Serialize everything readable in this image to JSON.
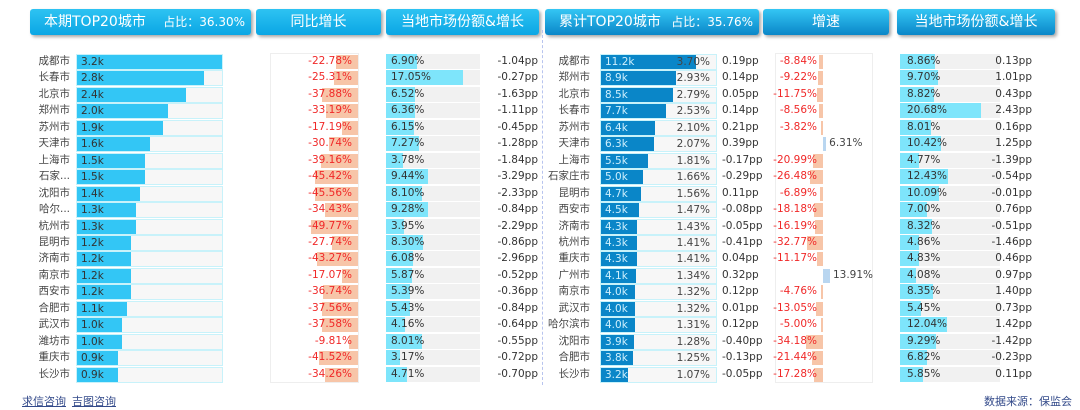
{
  "left": {
    "header_title": "本期TOP20城市",
    "header_share": "占比：36.30%",
    "col_yoy": "同比增长",
    "col_share": "当地市场份额&增长",
    "rows": [
      {
        "city": "成都市",
        "value": 3.2,
        "label": "3.2k",
        "yoy": "-22.78%",
        "yoy_num": -22.78,
        "share": "6.90%",
        "share_num": 6.9,
        "pp": "-1.04pp"
      },
      {
        "city": "长春市",
        "value": 2.8,
        "label": "2.8k",
        "yoy": "-25.31%",
        "yoy_num": -25.31,
        "share": "17.05%",
        "share_num": 17.05,
        "pp": "-0.27pp"
      },
      {
        "city": "北京市",
        "value": 2.4,
        "label": "2.4k",
        "yoy": "-37.88%",
        "yoy_num": -37.88,
        "share": "6.52%",
        "share_num": 6.52,
        "pp": "-1.63pp"
      },
      {
        "city": "郑州市",
        "value": 2.0,
        "label": "2.0k",
        "yoy": "-33.19%",
        "yoy_num": -33.19,
        "share": "6.36%",
        "share_num": 6.36,
        "pp": "-1.11pp"
      },
      {
        "city": "苏州市",
        "value": 1.9,
        "label": "1.9k",
        "yoy": "-17.19%",
        "yoy_num": -17.19,
        "share": "6.15%",
        "share_num": 6.15,
        "pp": "-0.45pp"
      },
      {
        "city": "天津市",
        "value": 1.6,
        "label": "1.6k",
        "yoy": "-30.74%",
        "yoy_num": -30.74,
        "share": "7.27%",
        "share_num": 7.27,
        "pp": "-1.28pp"
      },
      {
        "city": "上海市",
        "value": 1.5,
        "label": "1.5k",
        "yoy": "-39.16%",
        "yoy_num": -39.16,
        "share": "3.78%",
        "share_num": 3.78,
        "pp": "-1.84pp"
      },
      {
        "city": "石家...",
        "value": 1.5,
        "label": "1.5k",
        "yoy": "-45.42%",
        "yoy_num": -45.42,
        "share": "9.44%",
        "share_num": 9.44,
        "pp": "-3.29pp"
      },
      {
        "city": "沈阳市",
        "value": 1.4,
        "label": "1.4k",
        "yoy": "-45.56%",
        "yoy_num": -45.56,
        "share": "8.10%",
        "share_num": 8.1,
        "pp": "-2.33pp"
      },
      {
        "city": "哈尔...",
        "value": 1.3,
        "label": "1.3k",
        "yoy": "-34.43%",
        "yoy_num": -34.43,
        "share": "9.28%",
        "share_num": 9.28,
        "pp": "-0.84pp"
      },
      {
        "city": "杭州市",
        "value": 1.3,
        "label": "1.3k",
        "yoy": "-49.77%",
        "yoy_num": -49.77,
        "share": "3.95%",
        "share_num": 3.95,
        "pp": "-2.29pp"
      },
      {
        "city": "昆明市",
        "value": 1.2,
        "label": "1.2k",
        "yoy": "-27.74%",
        "yoy_num": -27.74,
        "share": "8.30%",
        "share_num": 8.3,
        "pp": "-0.86pp"
      },
      {
        "city": "济南市",
        "value": 1.2,
        "label": "1.2k",
        "yoy": "-43.27%",
        "yoy_num": -43.27,
        "share": "6.08%",
        "share_num": 6.08,
        "pp": "-2.96pp"
      },
      {
        "city": "南京市",
        "value": 1.2,
        "label": "1.2k",
        "yoy": "-17.07%",
        "yoy_num": -17.07,
        "share": "5.87%",
        "share_num": 5.87,
        "pp": "-0.52pp"
      },
      {
        "city": "西安市",
        "value": 1.2,
        "label": "1.2k",
        "yoy": "-36.74%",
        "yoy_num": -36.74,
        "share": "5.39%",
        "share_num": 5.39,
        "pp": "-0.36pp"
      },
      {
        "city": "合肥市",
        "value": 1.1,
        "label": "1.1k",
        "yoy": "-37.56%",
        "yoy_num": -37.56,
        "share": "5.43%",
        "share_num": 5.43,
        "pp": "-0.84pp"
      },
      {
        "city": "武汉市",
        "value": 1.0,
        "label": "1.0k",
        "yoy": "-37.58%",
        "yoy_num": -37.58,
        "share": "4.16%",
        "share_num": 4.16,
        "pp": "-0.64pp"
      },
      {
        "city": "潍坊市",
        "value": 1.0,
        "label": "1.0k",
        "yoy": "-9.81%",
        "yoy_num": -9.81,
        "share": "8.01%",
        "share_num": 8.01,
        "pp": "-0.55pp"
      },
      {
        "city": "重庆市",
        "value": 0.9,
        "label": "0.9k",
        "yoy": "-41.52%",
        "yoy_num": -41.52,
        "share": "3.17%",
        "share_num": 3.17,
        "pp": "-0.72pp"
      },
      {
        "city": "长沙市",
        "value": 0.9,
        "label": "0.9k",
        "yoy": "-34.26%",
        "yoy_num": -34.26,
        "share": "4.71%",
        "share_num": 4.71,
        "pp": "-0.70pp"
      }
    ]
  },
  "right": {
    "header_title": "累计TOP20城市",
    "header_share": "占比：35.76%",
    "col_growth": "增速",
    "col_share": "当地市场份额&增长",
    "rows": [
      {
        "city": "成都市",
        "value": 11.2,
        "label": "11.2k",
        "pct": "3.70%",
        "pct_pp": "0.19pp",
        "growth": "-8.84%",
        "growth_num": -8.84,
        "share": "8.86%",
        "share_num": 8.86,
        "pp": "0.13pp"
      },
      {
        "city": "郑州市",
        "value": 8.9,
        "label": "8.9k",
        "pct": "2.93%",
        "pct_pp": "0.14pp",
        "growth": "-9.22%",
        "growth_num": -9.22,
        "share": "9.70%",
        "share_num": 9.7,
        "pp": "1.01pp"
      },
      {
        "city": "北京市",
        "value": 8.5,
        "label": "8.5k",
        "pct": "2.79%",
        "pct_pp": "0.05pp",
        "growth": "-11.75%",
        "growth_num": -11.75,
        "share": "8.82%",
        "share_num": 8.82,
        "pp": "0.43pp"
      },
      {
        "city": "长春市",
        "value": 7.7,
        "label": "7.7k",
        "pct": "2.53%",
        "pct_pp": "0.14pp",
        "growth": "-8.56%",
        "growth_num": -8.56,
        "share": "20.68%",
        "share_num": 20.68,
        "pp": "2.43pp"
      },
      {
        "city": "苏州市",
        "value": 6.4,
        "label": "6.4k",
        "pct": "2.10%",
        "pct_pp": "0.21pp",
        "growth": "-3.82%",
        "growth_num": -3.82,
        "share": "8.01%",
        "share_num": 8.01,
        "pp": "0.16pp"
      },
      {
        "city": "天津市",
        "value": 6.3,
        "label": "6.3k",
        "pct": "2.07%",
        "pct_pp": "0.39pp",
        "growth": "6.31%",
        "growth_num": 6.31,
        "share": "10.42%",
        "share_num": 10.42,
        "pp": "1.25pp"
      },
      {
        "city": "上海市",
        "value": 5.5,
        "label": "5.5k",
        "pct": "1.81%",
        "pct_pp": "-0.17pp",
        "growth": "-20.99%",
        "growth_num": -20.99,
        "share": "4.77%",
        "share_num": 4.77,
        "pp": "-1.39pp"
      },
      {
        "city": "石家庄市",
        "value": 5.0,
        "label": "5.0k",
        "pct": "1.66%",
        "pct_pp": "-0.29pp",
        "growth": "-26.48%",
        "growth_num": -26.48,
        "share": "12.43%",
        "share_num": 12.43,
        "pp": "-0.54pp"
      },
      {
        "city": "昆明市",
        "value": 4.7,
        "label": "4.7k",
        "pct": "1.56%",
        "pct_pp": "0.11pp",
        "growth": "-6.89%",
        "growth_num": -6.89,
        "share": "10.09%",
        "share_num": 10.09,
        "pp": "-0.01pp"
      },
      {
        "city": "西安市",
        "value": 4.5,
        "label": "4.5k",
        "pct": "1.47%",
        "pct_pp": "-0.08pp",
        "growth": "-18.18%",
        "growth_num": -18.18,
        "share": "7.00%",
        "share_num": 7.0,
        "pp": "0.76pp"
      },
      {
        "city": "济南市",
        "value": 4.3,
        "label": "4.3k",
        "pct": "1.43%",
        "pct_pp": "-0.05pp",
        "growth": "-16.19%",
        "growth_num": -16.19,
        "share": "8.32%",
        "share_num": 8.32,
        "pp": "-0.51pp"
      },
      {
        "city": "杭州市",
        "value": 4.3,
        "label": "4.3k",
        "pct": "1.41%",
        "pct_pp": "-0.41pp",
        "growth": "-32.77%",
        "growth_num": -32.77,
        "share": "4.86%",
        "share_num": 4.86,
        "pp": "-1.46pp"
      },
      {
        "city": "重庆市",
        "value": 4.3,
        "label": "4.3k",
        "pct": "1.41%",
        "pct_pp": "0.04pp",
        "growth": "-11.17%",
        "growth_num": -11.17,
        "share": "4.83%",
        "share_num": 4.83,
        "pp": "0.46pp"
      },
      {
        "city": "广州市",
        "value": 4.1,
        "label": "4.1k",
        "pct": "1.34%",
        "pct_pp": "0.32pp",
        "growth": "13.91%",
        "growth_num": 13.91,
        "share": "4.08%",
        "share_num": 4.08,
        "pp": "0.97pp"
      },
      {
        "city": "南京市",
        "value": 4.0,
        "label": "4.0k",
        "pct": "1.32%",
        "pct_pp": "0.12pp",
        "growth": "-4.76%",
        "growth_num": -4.76,
        "share": "8.35%",
        "share_num": 8.35,
        "pp": "1.40pp"
      },
      {
        "city": "武汉市",
        "value": 4.0,
        "label": "4.0k",
        "pct": "1.32%",
        "pct_pp": "0.01pp",
        "growth": "-13.05%",
        "growth_num": -13.05,
        "share": "5.45%",
        "share_num": 5.45,
        "pp": "0.73pp"
      },
      {
        "city": "哈尔滨市",
        "value": 4.0,
        "label": "4.0k",
        "pct": "1.31%",
        "pct_pp": "0.12pp",
        "growth": "-5.00%",
        "growth_num": -5.0,
        "share": "12.04%",
        "share_num": 12.04,
        "pp": "1.42pp"
      },
      {
        "city": "沈阳市",
        "value": 3.9,
        "label": "3.9k",
        "pct": "1.28%",
        "pct_pp": "-0.40pp",
        "growth": "-34.18%",
        "growth_num": -34.18,
        "share": "9.29%",
        "share_num": 9.29,
        "pp": "-1.42pp"
      },
      {
        "city": "合肥市",
        "value": 3.8,
        "label": "3.8k",
        "pct": "1.25%",
        "pct_pp": "-0.13pp",
        "growth": "-21.44%",
        "growth_num": -21.44,
        "share": "6.82%",
        "share_num": 6.82,
        "pp": "-0.23pp"
      },
      {
        "city": "长沙市",
        "value": 3.2,
        "label": "3.2k",
        "pct": "1.07%",
        "pct_pp": "-0.05pp",
        "growth": "-17.28%",
        "growth_num": -17.28,
        "share": "5.85%",
        "share_num": 5.85,
        "pp": "0.11pp"
      }
    ]
  },
  "footer": {
    "link1": "求信咨询",
    "link2": "吉图咨询",
    "source": "数据来源：保监会"
  }
}
